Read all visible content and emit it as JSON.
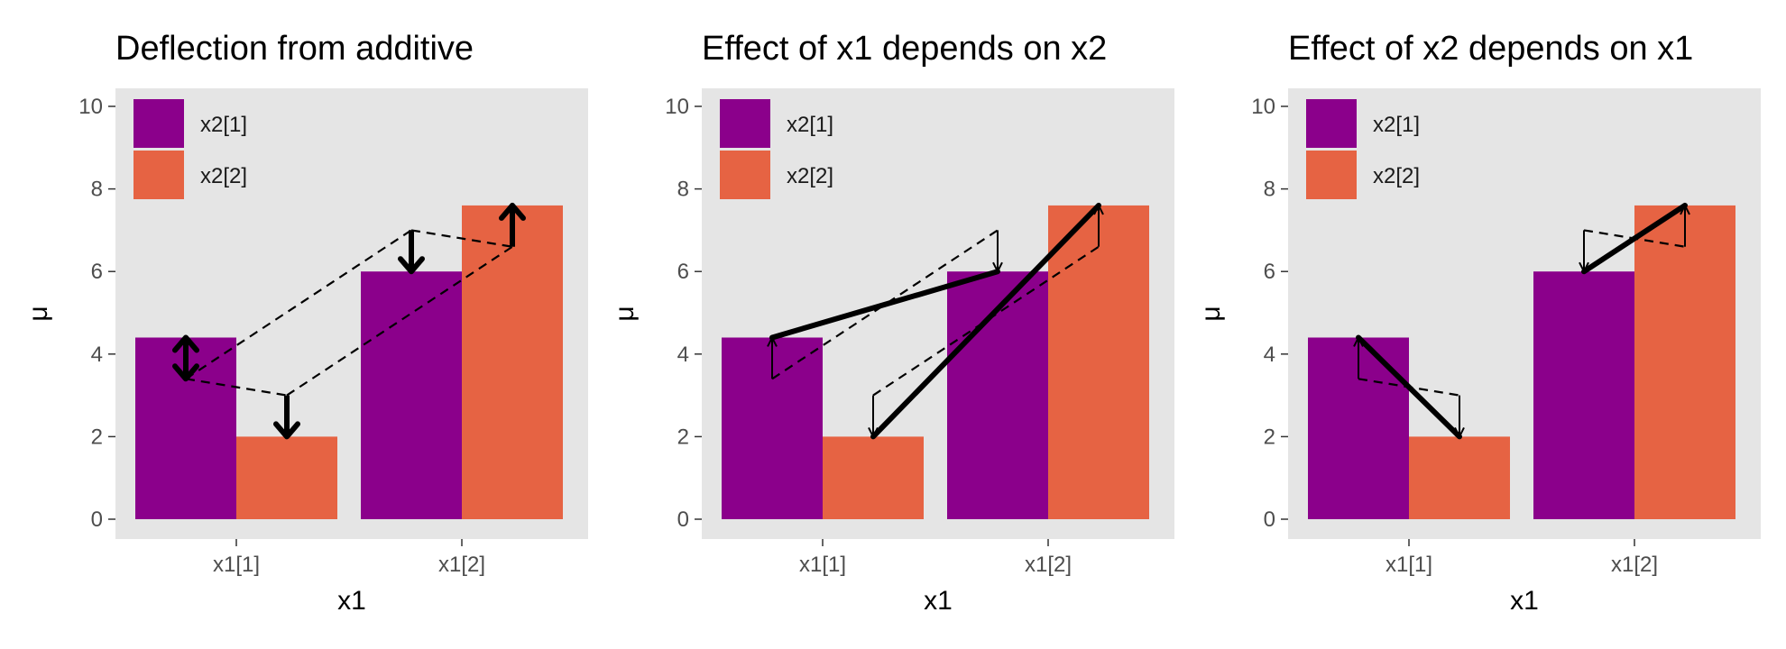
{
  "colors": {
    "x2_1": "#8B008B",
    "x2_2": "#E66343",
    "panel_bg": "#E5E5E5",
    "tick": "#333333",
    "annotation": "#000000"
  },
  "chart_data": [
    {
      "type": "bar",
      "title": "Deflection from additive",
      "xlabel": "x1",
      "ylabel": "μ",
      "ylim": [
        0,
        10
      ],
      "yticks": [
        "0",
        "2",
        "4",
        "6",
        "8",
        "10"
      ],
      "categories": [
        "x1[1]",
        "x1[2]"
      ],
      "series": [
        {
          "name": "x2[1]",
          "values": [
            4.4,
            6.0
          ]
        },
        {
          "name": "x2[2]",
          "values": [
            2.0,
            7.6
          ]
        }
      ],
      "legend_position": "top-left",
      "grid": false,
      "dashed_lines": [
        [
          [
            1,
            3.4
          ],
          [
            2,
            3.0
          ]
        ],
        [
          [
            1,
            3.4
          ],
          [
            3,
            7.0
          ]
        ],
        [
          [
            3,
            7.0
          ],
          [
            4,
            6.6
          ]
        ],
        [
          [
            2,
            3.0
          ],
          [
            4,
            6.6
          ]
        ]
      ],
      "thick_lines": [],
      "arrows": [
        {
          "x": 1,
          "from": 3.4,
          "to": 4.4,
          "style": "thick",
          "ends": "both"
        },
        {
          "x": 2,
          "from": 3.0,
          "to": 2.0,
          "style": "thick",
          "ends": "end"
        },
        {
          "x": 3,
          "from": 7.0,
          "to": 6.0,
          "style": "thick",
          "ends": "end"
        },
        {
          "x": 4,
          "from": 6.6,
          "to": 7.6,
          "style": "thick",
          "ends": "end"
        }
      ]
    },
    {
      "type": "bar",
      "title": "Effect of x1 depends on x2",
      "xlabel": "x1",
      "ylabel": "μ",
      "ylim": [
        0,
        10
      ],
      "yticks": [
        "0",
        "2",
        "4",
        "6",
        "8",
        "10"
      ],
      "categories": [
        "x1[1]",
        "x1[2]"
      ],
      "series": [
        {
          "name": "x2[1]",
          "values": [
            4.4,
            6.0
          ]
        },
        {
          "name": "x2[2]",
          "values": [
            2.0,
            7.6
          ]
        }
      ],
      "legend_position": "top-left",
      "grid": false,
      "dashed_lines": [
        [
          [
            1,
            3.4
          ],
          [
            3,
            7.0
          ]
        ],
        [
          [
            2,
            3.0
          ],
          [
            4,
            6.6
          ]
        ]
      ],
      "thick_lines": [
        [
          [
            1,
            4.4
          ],
          [
            3,
            6.0
          ]
        ],
        [
          [
            2,
            2.0
          ],
          [
            4,
            7.6
          ]
        ]
      ],
      "arrows": [
        {
          "x": 1,
          "from": 3.4,
          "to": 4.4,
          "style": "thin",
          "ends": "end"
        },
        {
          "x": 3,
          "from": 7.0,
          "to": 6.0,
          "style": "thin",
          "ends": "end"
        },
        {
          "x": 2,
          "from": 3.0,
          "to": 2.0,
          "style": "thin",
          "ends": "end"
        },
        {
          "x": 4,
          "from": 6.6,
          "to": 7.6,
          "style": "thin",
          "ends": "end"
        }
      ]
    },
    {
      "type": "bar",
      "title": "Effect of x2 depends on x1",
      "xlabel": "x1",
      "ylabel": "μ",
      "ylim": [
        0,
        10
      ],
      "yticks": [
        "0",
        "2",
        "4",
        "6",
        "8",
        "10"
      ],
      "categories": [
        "x1[1]",
        "x1[2]"
      ],
      "series": [
        {
          "name": "x2[1]",
          "values": [
            4.4,
            6.0
          ]
        },
        {
          "name": "x2[2]",
          "values": [
            2.0,
            7.6
          ]
        }
      ],
      "legend_position": "top-left",
      "grid": false,
      "dashed_lines": [
        [
          [
            1,
            3.4
          ],
          [
            2,
            3.0
          ]
        ],
        [
          [
            3,
            7.0
          ],
          [
            4,
            6.6
          ]
        ]
      ],
      "thick_lines": [
        [
          [
            1,
            4.4
          ],
          [
            2,
            2.0
          ]
        ],
        [
          [
            3,
            6.0
          ],
          [
            4,
            7.6
          ]
        ]
      ],
      "arrows": [
        {
          "x": 1,
          "from": 3.4,
          "to": 4.4,
          "style": "thin",
          "ends": "end"
        },
        {
          "x": 2,
          "from": 3.0,
          "to": 2.0,
          "style": "thin",
          "ends": "end"
        },
        {
          "x": 3,
          "from": 7.0,
          "to": 6.0,
          "style": "thin",
          "ends": "end"
        },
        {
          "x": 4,
          "from": 6.6,
          "to": 7.6,
          "style": "thin",
          "ends": "end"
        }
      ]
    }
  ]
}
